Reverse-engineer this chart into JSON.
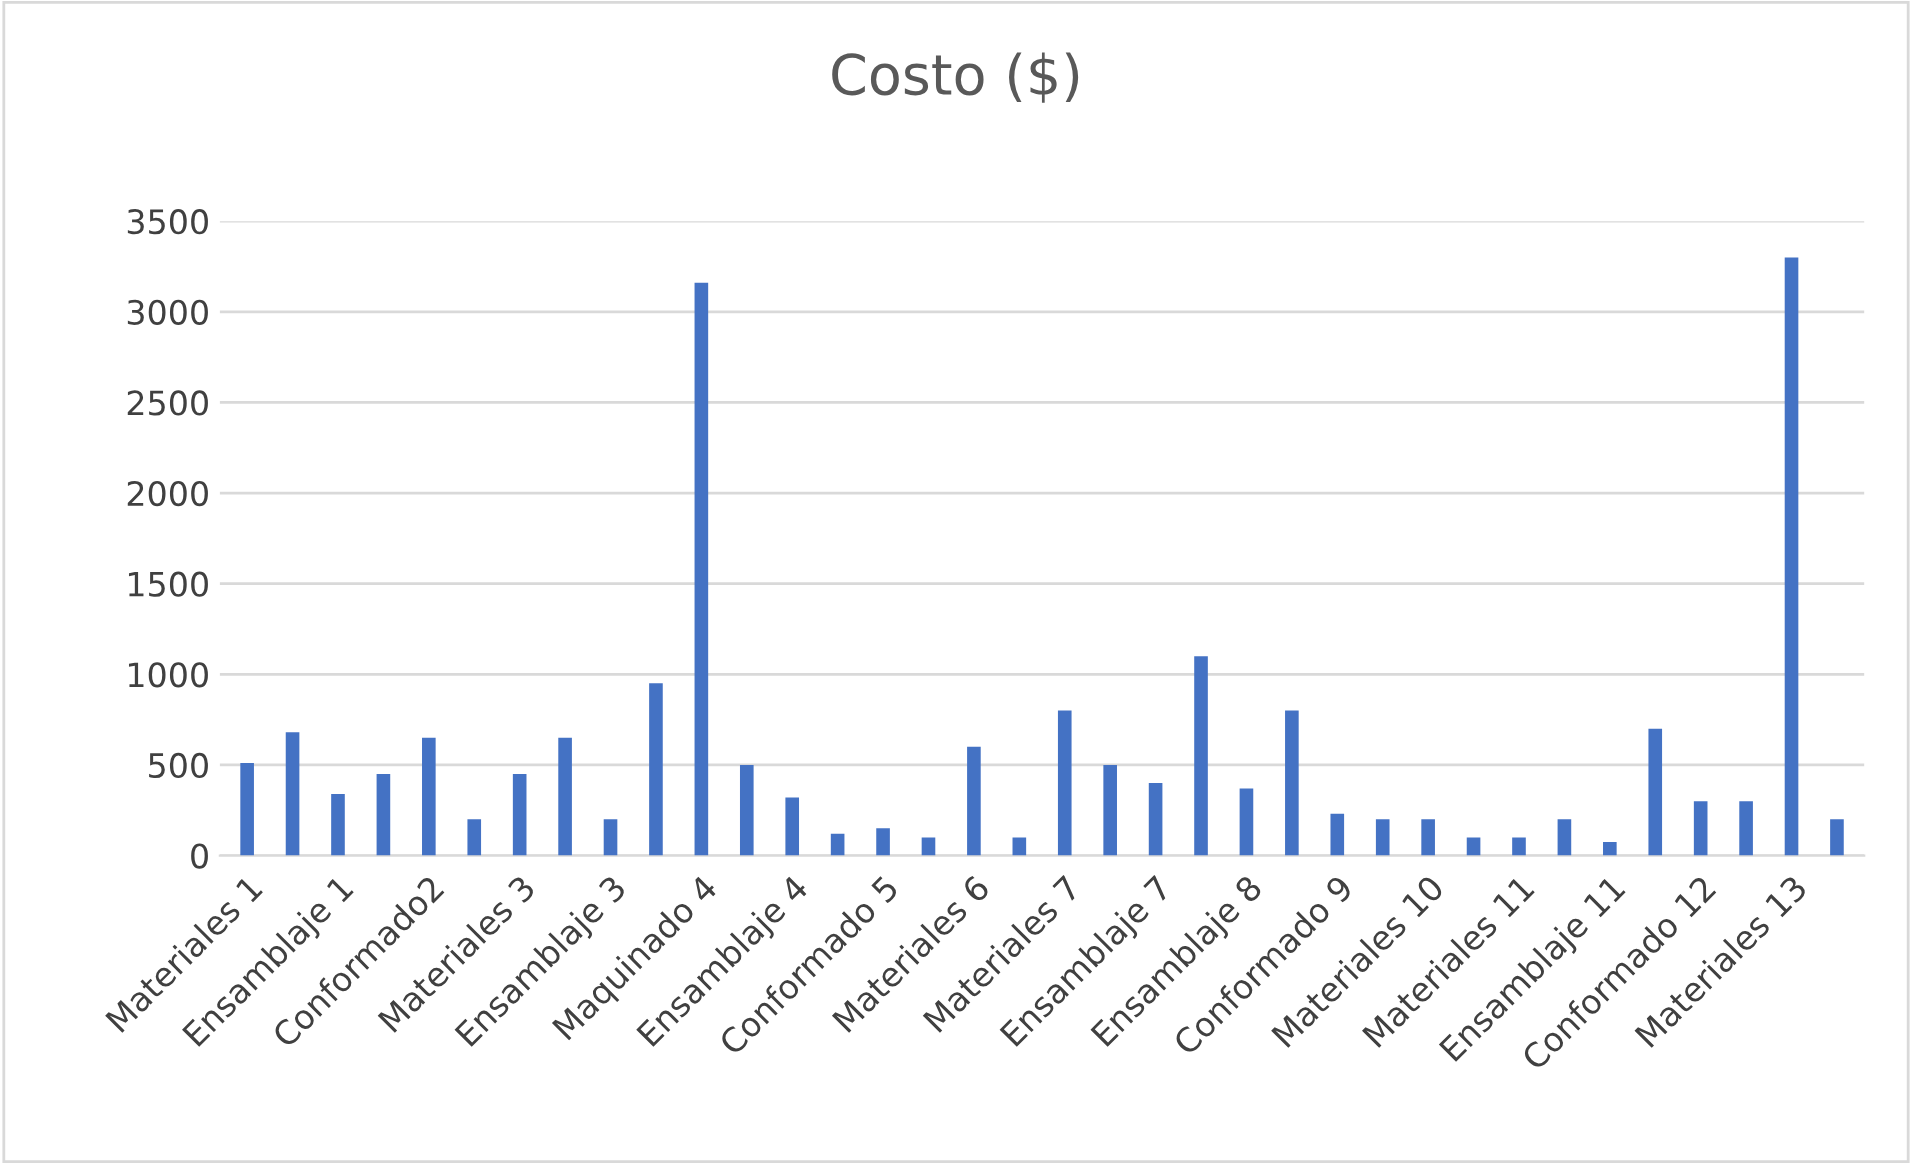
{
  "chart_data": {
    "type": "bar",
    "title": "Costo ($)",
    "categories": [
      "Materiales 1",
      null,
      "Ensamblaje 1",
      null,
      "Conformado2",
      null,
      "Materiales 3",
      null,
      "Ensamblaje 3",
      null,
      "Maquinado 4",
      null,
      "Ensamblaje 4",
      null,
      "Conformado 5",
      null,
      "Materiales 6",
      null,
      "Materiales 7",
      null,
      "Ensamblaje 7",
      null,
      "Ensamblaje 8",
      null,
      "Conformado 9",
      null,
      "Materiales 10",
      null,
      "Materiales 11",
      null,
      "Ensamblaje 11",
      null,
      "Conformado 12",
      null,
      "Materiales 13",
      null
    ],
    "values": [
      510,
      680,
      340,
      450,
      650,
      200,
      450,
      650,
      200,
      950,
      3160,
      500,
      320,
      120,
      150,
      100,
      600,
      100,
      800,
      500,
      400,
      1100,
      370,
      800,
      230,
      200,
      200,
      100,
      100,
      200,
      75,
      700,
      300,
      300,
      3300,
      200
    ],
    "color": "#4472c4",
    "ylim": [
      0,
      3500
    ],
    "yticks": [
      0,
      500,
      1000,
      1500,
      2000,
      2500,
      3000,
      3500
    ],
    "grid": "y",
    "legend": false
  }
}
